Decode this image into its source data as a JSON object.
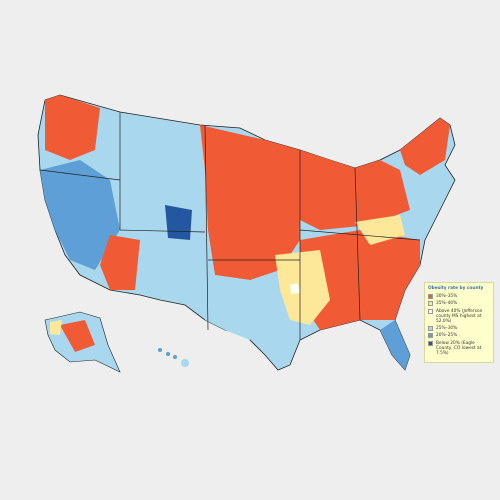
{
  "legend": {
    "title": "Obesity rate by county",
    "items": [
      {
        "label": "30%–35%",
        "color": "#f05a35"
      },
      {
        "label": "35%–40%",
        "color": "#fde89a"
      },
      {
        "label": "Above 40% (Jefferson county MS highest at 52.0%)",
        "color": "#fffff0"
      },
      {
        "label": "25%–30%",
        "color": "#a9d8ee"
      },
      {
        "label": "20%–25%",
        "color": "#5d9fd6"
      },
      {
        "label": "Below 20% (Eagle County, CO lowest at 7.5%)",
        "color": "#2357a0"
      }
    ]
  }
}
